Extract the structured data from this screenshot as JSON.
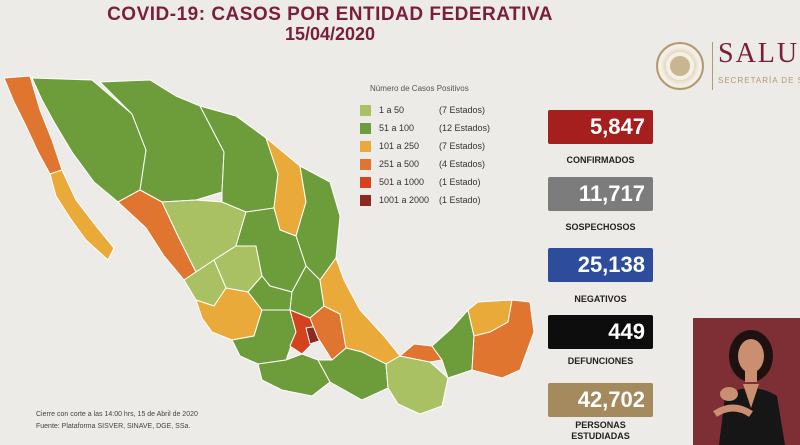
{
  "header": {
    "title_line1": "COVID-19: CASOS POR ENTIDAD FEDERATIVA",
    "title_line2": "15/04/2020"
  },
  "logo": {
    "main": "SALU",
    "sub": "SECRETARÍA DE SA"
  },
  "legend": {
    "title": "Número de Casos Positivos",
    "items": [
      {
        "range": "1 a 50",
        "count": "(7 Estados)",
        "color": "#a9c162"
      },
      {
        "range": "51 a 100",
        "count": "(12 Estados)",
        "color": "#6d9c3a"
      },
      {
        "range": "101 a 250",
        "count": "(7 Estados)",
        "color": "#eaaa3a"
      },
      {
        "range": "251 a 500",
        "count": "(4 Estados)",
        "color": "#e0752f"
      },
      {
        "range": "501 a 1000",
        "count": "(1 Estado)",
        "color": "#d4431d"
      },
      {
        "range": "1001 a 2000",
        "count": "(1 Estado)",
        "color": "#8c2a22"
      }
    ]
  },
  "stats": {
    "confirmados": {
      "value": "5,847",
      "label": "CONFIRMADOS",
      "color": "#a51f1f"
    },
    "sospechosos": {
      "value": "11,717",
      "label": "SOSPECHOSOS",
      "color": "#7c7c7c"
    },
    "negativos": {
      "value": "25,138",
      "label": "NEGATIVOS",
      "color": "#2d4c9c"
    },
    "defunciones": {
      "value": "449",
      "label": "DEFUNCIONES",
      "color": "#0d0d0d"
    },
    "estudiadas": {
      "value": "42,702",
      "label_line1": "PERSONAS",
      "label_line2": "ESTUDIADAS",
      "color": "#a48a5c"
    }
  },
  "footer": {
    "line1": "Cierre con corte a las 14:00 hrs, 15 de Abril de 2020",
    "line2": "Fuente: Plataforma SISVER, SINAVE, DGE, SSa."
  }
}
